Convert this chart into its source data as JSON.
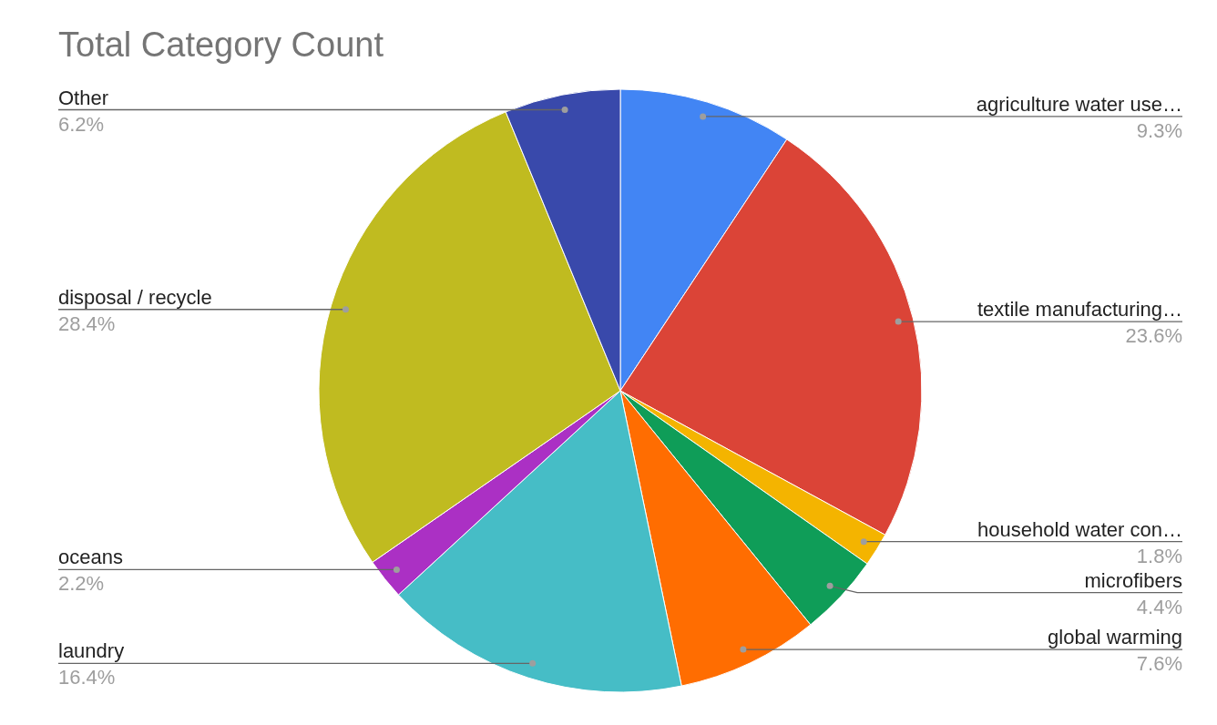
{
  "chart_data": {
    "type": "pie",
    "title": "Total Category Count",
    "categories": [
      "agriculture water use…",
      "textile manufacturing…",
      "household water con…",
      "microfibers",
      "global warming",
      "laundry",
      "oceans",
      "disposal / recycle",
      "Other"
    ],
    "values": [
      9.3,
      23.6,
      1.8,
      4.4,
      7.6,
      16.4,
      2.2,
      28.4,
      6.2
    ],
    "colors": [
      "#4285f4",
      "#db4437",
      "#f4b400",
      "#0f9d58",
      "#ff6d01",
      "#46bdc6",
      "#ab30c4",
      "#c0bb20",
      "#3949ab"
    ],
    "value_labels": [
      "9.3%",
      "23.6%",
      "1.8%",
      "4.4%",
      "7.6%",
      "16.4%",
      "2.2%",
      "28.4%",
      "6.2%"
    ]
  }
}
